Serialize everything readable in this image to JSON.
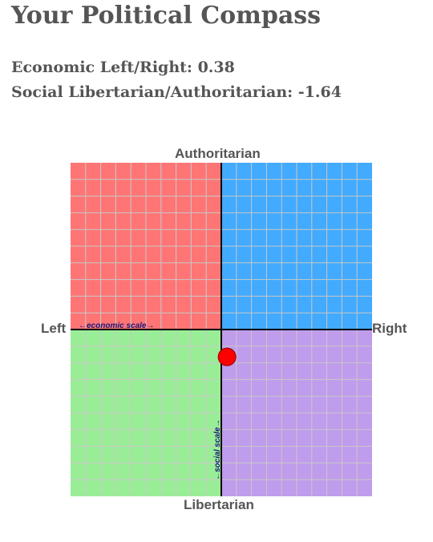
{
  "page": {
    "title": "Your Political Compass",
    "economic_text": "Economic Left/Right: 0.38",
    "social_text": "Social Libertarian/Authoritarian: -1.64"
  },
  "compass": {
    "top_label": "Authoritarian",
    "bottom_label": "Libertarian",
    "left_label": "Left",
    "right_label": "Right",
    "economic_scale_label": "←economic scale→",
    "social_scale_label": "←social scale→",
    "range": [
      -10,
      10
    ],
    "grid_divisions": 20,
    "economic": 0.38,
    "social": -1.64,
    "colors": {
      "authoritarian_left": "#ff7575",
      "authoritarian_right": "#42aaff",
      "libertarian_left": "#9aed97",
      "libertarian_right": "#c09cec",
      "grid": "#c8c8c8",
      "axes": "#000000",
      "marker": "#ff0000"
    }
  }
}
